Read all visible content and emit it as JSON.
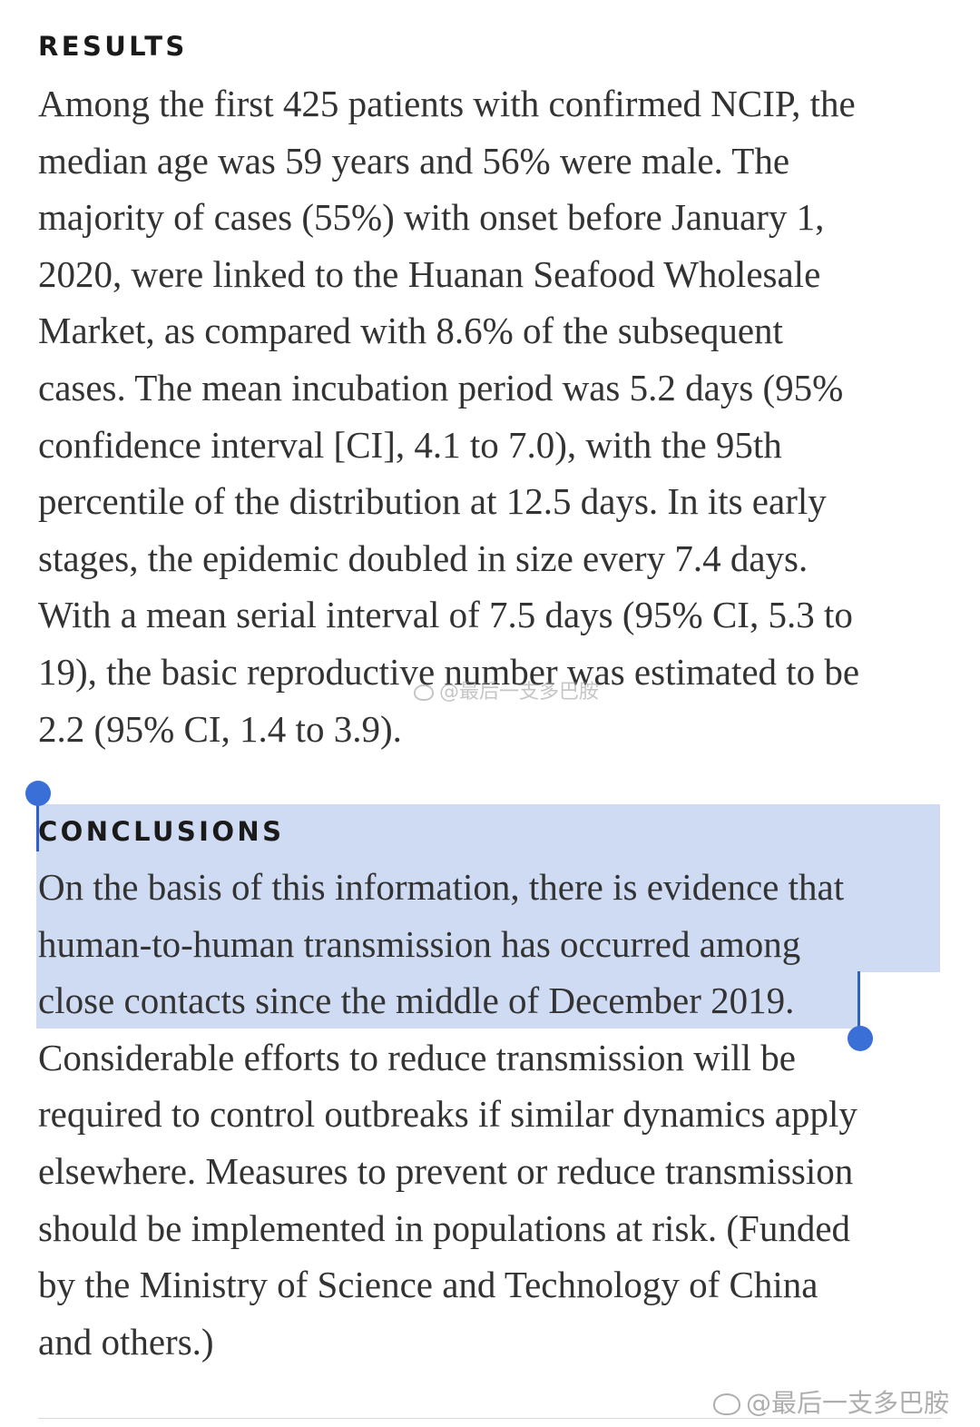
{
  "results": {
    "heading": "RESULTS",
    "lines": [
      "Among the first 425 patients with confirmed NCIP, the",
      "median age was 59 years and 56% were male. The",
      "majority of cases (55%) with onset before January 1,",
      "2020, were linked to the Huanan Seafood Wholesale",
      "Market, as compared with 8.6% of the subsequent",
      "cases. The mean incubation period was 5.2 days (95%",
      "confidence interval [CI], 4.1 to 7.0), with the 95th",
      "percentile of the distribution at 12.5 days. In its early",
      "stages, the epidemic doubled in size every 7.4 days.",
      "With a mean serial interval of 7.5 days (95% CI, 5.3 to",
      "19), the basic reproductive number was estimated to be",
      "2.2 (95% CI, 1.4 to 3.9)."
    ]
  },
  "conclusions": {
    "heading": "CONCLUSIONS",
    "lines": [
      "On the basis of this information, there is evidence that",
      "human-to-human transmission has occurred among",
      "close contacts since the middle of December 2019.",
      "Considerable efforts to reduce transmission will be",
      "required to control outbreaks if similar dynamics apply",
      "elsewhere. Measures to prevent or reduce transmission",
      "should be implemented in populations at risk. (Funded",
      "by the Ministry of Science and Technology of China",
      "and others.)"
    ]
  },
  "watermarks": {
    "center": "@最后一支多巴胺",
    "corner": "@最后一支多巴胺"
  },
  "icons": {
    "watermark": "weibo-icon",
    "selection_start": "selection-start-handle",
    "selection_end": "selection-end-handle"
  },
  "colors": {
    "selection": "#a8bee8",
    "handle": "#3a6fd8",
    "text": "#333333",
    "heading": "#1a1a1a"
  }
}
